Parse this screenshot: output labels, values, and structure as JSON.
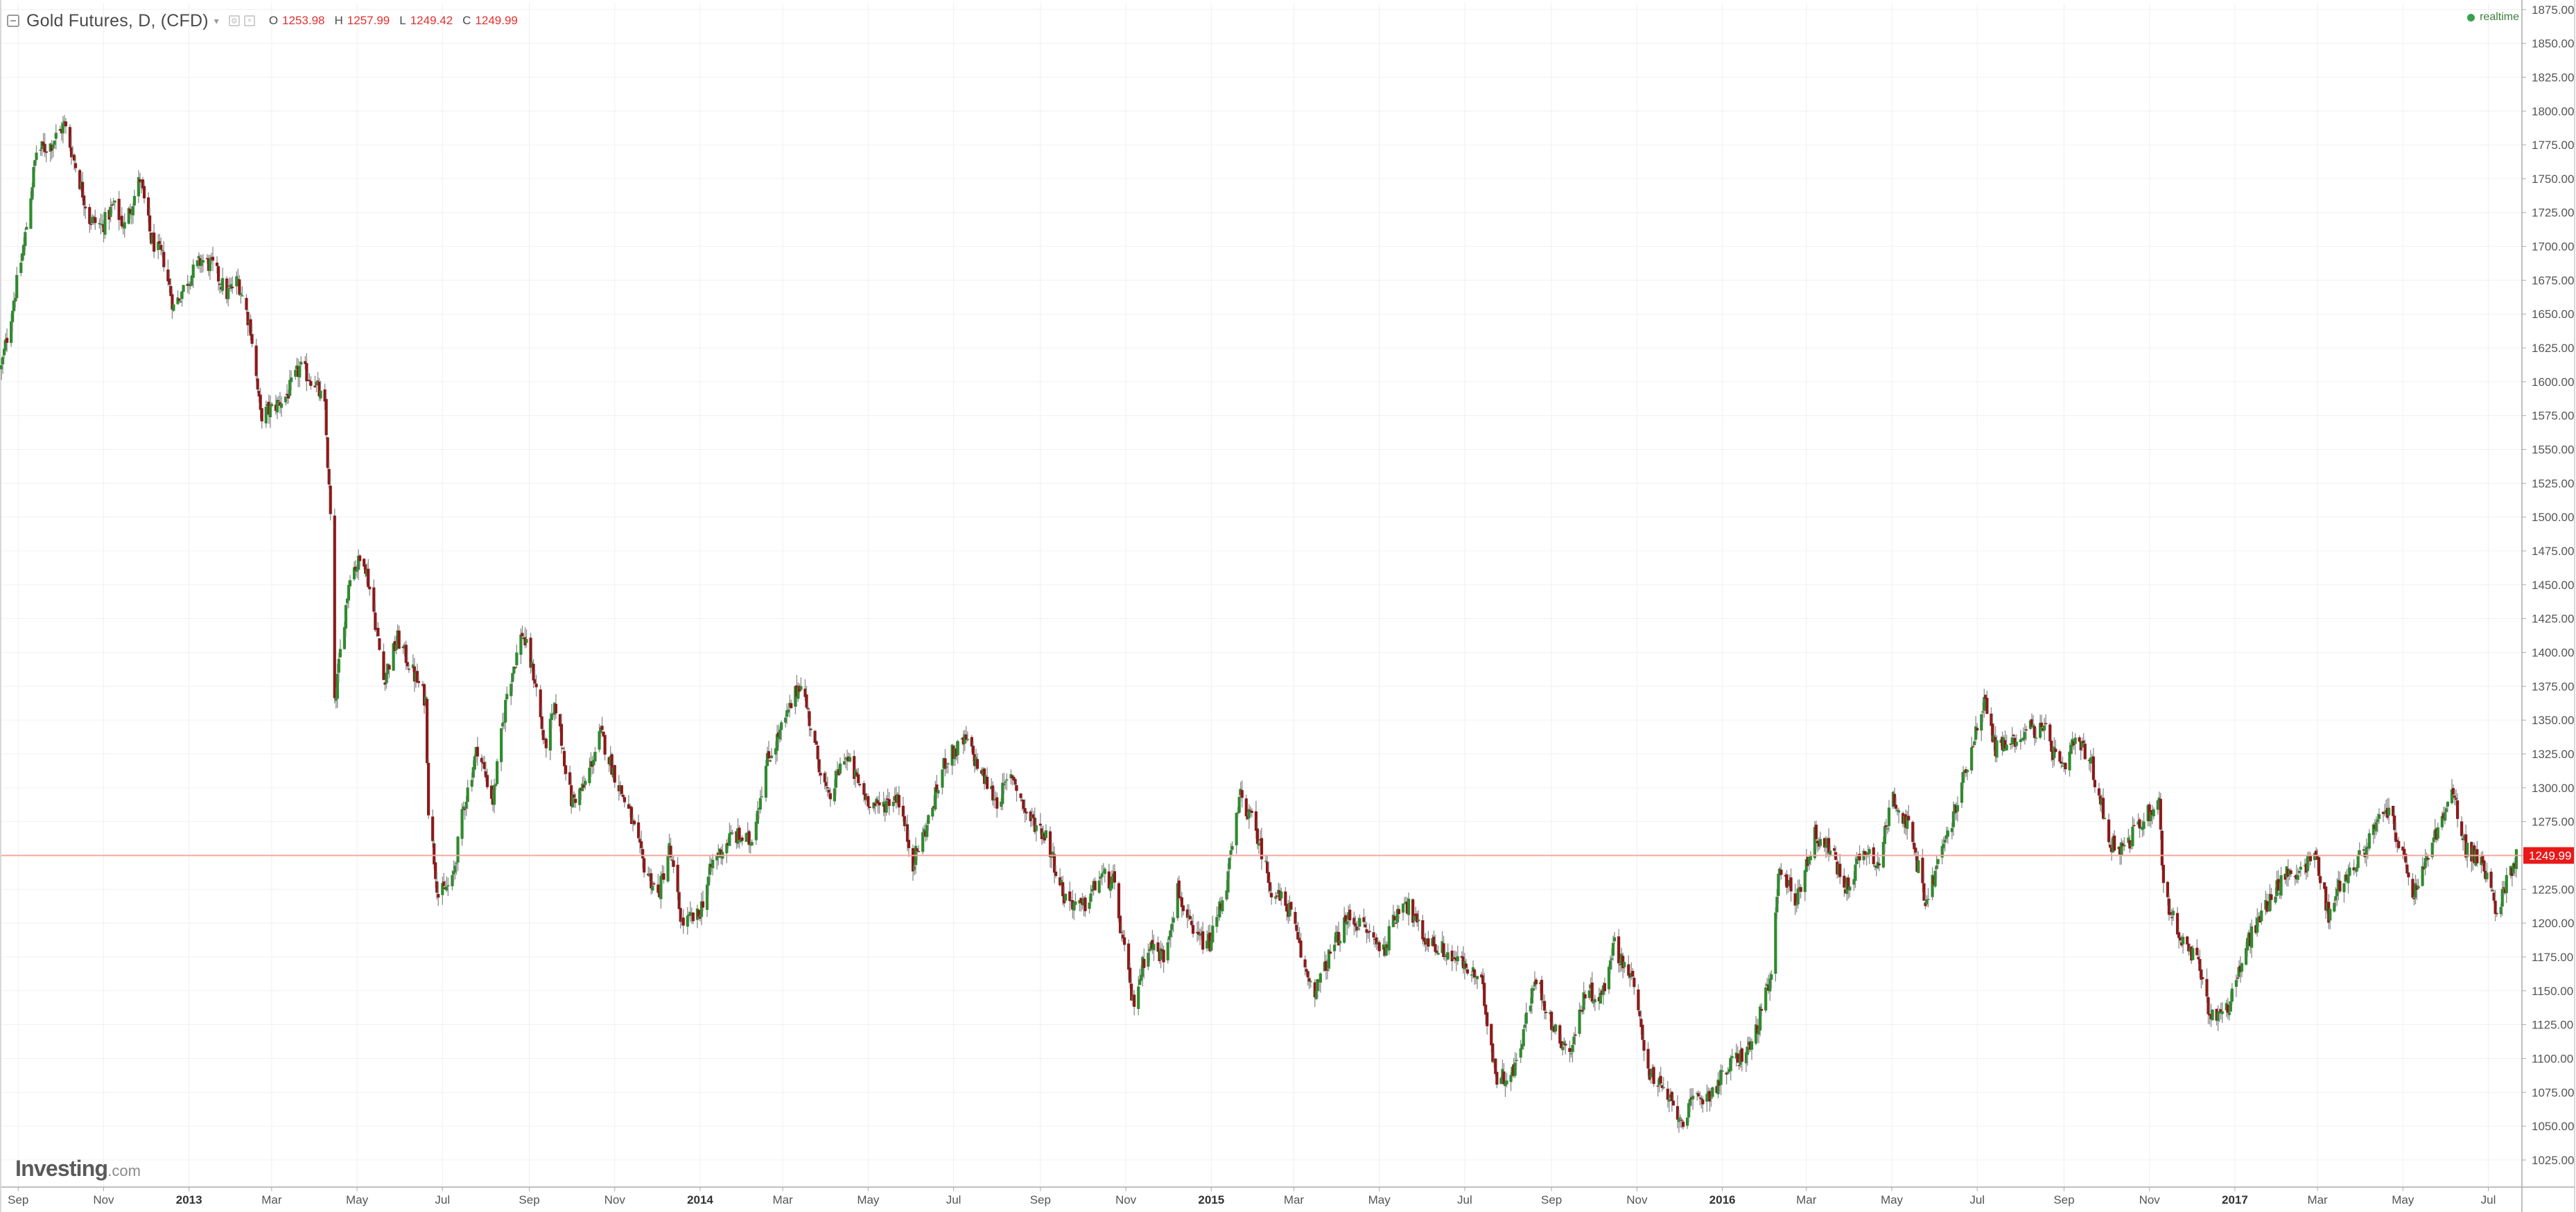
{
  "header": {
    "symbol": "Gold Futures, D, (CFD)",
    "caret": "▾",
    "open_label": "O",
    "open_value": "1253.98",
    "high_label": "H",
    "high_value": "1257.99",
    "low_label": "L",
    "low_value": "1249.42",
    "close_label": "C",
    "close_value": "1249.99"
  },
  "status": {
    "realtime_label": "realtime"
  },
  "branding": {
    "logo_main": "Investing",
    "logo_suffix": ".com"
  },
  "colors": {
    "up": "#2e8b2e",
    "down": "#8b1a1a",
    "wick": "#8a8a8a",
    "grid": "#f0f0f0",
    "axis": "#aaaaaa",
    "last_price_line": "#f2a89e",
    "last_price_tag": "#e8191a"
  },
  "chart_data": {
    "type": "candlestick",
    "title": "Gold Futures, D, (CFD)",
    "xlabel": "",
    "ylabel": "",
    "ylim": [
      1005,
      1880
    ],
    "x_range": [
      "2012-08-20",
      "2017-07-25"
    ],
    "y_ticks": [
      1025,
      1050,
      1075,
      1100,
      1125,
      1150,
      1175,
      1200,
      1225,
      1250,
      1275,
      1300,
      1325,
      1350,
      1375,
      1400,
      1425,
      1450,
      1475,
      1500,
      1525,
      1550,
      1575,
      1600,
      1625,
      1650,
      1675,
      1700,
      1725,
      1750,
      1775,
      1800,
      1825,
      1850,
      1875
    ],
    "x_ticks": [
      {
        "date": "2012-09-01",
        "label": "Sep"
      },
      {
        "date": "2012-11-01",
        "label": "Nov"
      },
      {
        "date": "2013-01-01",
        "label": "2013",
        "year": true
      },
      {
        "date": "2013-03-01",
        "label": "Mar"
      },
      {
        "date": "2013-05-01",
        "label": "May"
      },
      {
        "date": "2013-07-01",
        "label": "Jul"
      },
      {
        "date": "2013-09-01",
        "label": "Sep"
      },
      {
        "date": "2013-11-01",
        "label": "Nov"
      },
      {
        "date": "2014-01-01",
        "label": "2014",
        "year": true
      },
      {
        "date": "2014-03-01",
        "label": "Mar"
      },
      {
        "date": "2014-05-01",
        "label": "May"
      },
      {
        "date": "2014-07-01",
        "label": "Jul"
      },
      {
        "date": "2014-09-01",
        "label": "Sep"
      },
      {
        "date": "2014-11-01",
        "label": "Nov"
      },
      {
        "date": "2015-01-01",
        "label": "2015",
        "year": true
      },
      {
        "date": "2015-03-01",
        "label": "Mar"
      },
      {
        "date": "2015-05-01",
        "label": "May"
      },
      {
        "date": "2015-07-01",
        "label": "Jul"
      },
      {
        "date": "2015-09-01",
        "label": "Sep"
      },
      {
        "date": "2015-11-01",
        "label": "Nov"
      },
      {
        "date": "2016-01-01",
        "label": "2016",
        "year": true
      },
      {
        "date": "2016-03-01",
        "label": "Mar"
      },
      {
        "date": "2016-05-01",
        "label": "May"
      },
      {
        "date": "2016-07-01",
        "label": "Jul"
      },
      {
        "date": "2016-09-01",
        "label": "Sep"
      },
      {
        "date": "2016-11-01",
        "label": "Nov"
      },
      {
        "date": "2017-01-01",
        "label": "2017",
        "year": true
      },
      {
        "date": "2017-03-01",
        "label": "Mar"
      },
      {
        "date": "2017-05-01",
        "label": "May"
      },
      {
        "date": "2017-07-01",
        "label": "Jul"
      }
    ],
    "last_price": 1249.99,
    "last_price_label": "1249.99",
    "grid": true,
    "price_path": [
      [
        "2012-08-20",
        1610
      ],
      [
        "2012-08-27",
        1650
      ],
      [
        "2012-09-05",
        1700
      ],
      [
        "2012-09-14",
        1770
      ],
      [
        "2012-09-24",
        1775
      ],
      [
        "2012-10-04",
        1790
      ],
      [
        "2012-10-12",
        1760
      ],
      [
        "2012-10-22",
        1720
      ],
      [
        "2012-10-31",
        1715
      ],
      [
        "2012-11-08",
        1730
      ],
      [
        "2012-11-16",
        1715
      ],
      [
        "2012-11-27",
        1750
      ],
      [
        "2012-12-05",
        1705
      ],
      [
        "2012-12-14",
        1690
      ],
      [
        "2012-12-21",
        1655
      ],
      [
        "2012-12-31",
        1675
      ],
      [
        "2013-01-10",
        1690
      ],
      [
        "2013-01-18",
        1685
      ],
      [
        "2013-01-28",
        1665
      ],
      [
        "2013-02-05",
        1675
      ],
      [
        "2013-02-14",
        1640
      ],
      [
        "2013-02-21",
        1575
      ],
      [
        "2013-03-01",
        1580
      ],
      [
        "2013-03-12",
        1590
      ],
      [
        "2013-03-21",
        1610
      ],
      [
        "2013-04-01",
        1600
      ],
      [
        "2013-04-08",
        1580
      ],
      [
        "2013-04-12",
        1500
      ],
      [
        "2013-04-15",
        1360
      ],
      [
        "2013-04-19",
        1400
      ],
      [
        "2013-04-26",
        1460
      ],
      [
        "2013-05-06",
        1470
      ],
      [
        "2013-05-13",
        1430
      ],
      [
        "2013-05-20",
        1380
      ],
      [
        "2013-05-30",
        1410
      ],
      [
        "2013-06-10",
        1385
      ],
      [
        "2013-06-19",
        1365
      ],
      [
        "2013-06-21",
        1285
      ],
      [
        "2013-06-28",
        1220
      ],
      [
        "2013-07-08",
        1230
      ],
      [
        "2013-07-16",
        1285
      ],
      [
        "2013-07-26",
        1330
      ],
      [
        "2013-08-06",
        1290
      ],
      [
        "2013-08-16",
        1370
      ],
      [
        "2013-08-27",
        1415
      ],
      [
        "2013-09-05",
        1380
      ],
      [
        "2013-09-12",
        1330
      ],
      [
        "2013-09-20",
        1360
      ],
      [
        "2013-10-01",
        1290
      ],
      [
        "2013-10-10",
        1300
      ],
      [
        "2013-10-22",
        1340
      ],
      [
        "2013-11-01",
        1310
      ],
      [
        "2013-11-12",
        1280
      ],
      [
        "2013-11-21",
        1245
      ],
      [
        "2013-12-02",
        1220
      ],
      [
        "2013-12-10",
        1255
      ],
      [
        "2013-12-19",
        1200
      ],
      [
        "2013-12-31",
        1205
      ],
      [
        "2014-01-10",
        1245
      ],
      [
        "2014-01-24",
        1265
      ],
      [
        "2014-02-06",
        1260
      ],
      [
        "2014-02-18",
        1320
      ],
      [
        "2014-03-03",
        1350
      ],
      [
        "2014-03-14",
        1380
      ],
      [
        "2014-03-24",
        1330
      ],
      [
        "2014-04-03",
        1290
      ],
      [
        "2014-04-14",
        1325
      ],
      [
        "2014-04-28",
        1295
      ],
      [
        "2014-05-08",
        1285
      ],
      [
        "2014-05-22",
        1295
      ],
      [
        "2014-06-02",
        1245
      ],
      [
        "2014-06-13",
        1275
      ],
      [
        "2014-06-25",
        1320
      ],
      [
        "2014-07-10",
        1335
      ],
      [
        "2014-07-21",
        1310
      ],
      [
        "2014-08-01",
        1290
      ],
      [
        "2014-08-12",
        1310
      ],
      [
        "2014-08-22",
        1280
      ],
      [
        "2014-09-05",
        1265
      ],
      [
        "2014-09-18",
        1220
      ],
      [
        "2014-10-01",
        1210
      ],
      [
        "2014-10-14",
        1235
      ],
      [
        "2014-10-23",
        1230
      ],
      [
        "2014-11-06",
        1140
      ],
      [
        "2014-11-17",
        1185
      ],
      [
        "2014-11-28",
        1175
      ],
      [
        "2014-12-08",
        1225
      ],
      [
        "2014-12-19",
        1190
      ],
      [
        "2014-12-31",
        1185
      ],
      [
        "2015-01-12",
        1230
      ],
      [
        "2015-01-22",
        1295
      ],
      [
        "2015-02-03",
        1265
      ],
      [
        "2015-02-13",
        1225
      ],
      [
        "2015-02-26",
        1210
      ],
      [
        "2015-03-09",
        1165
      ],
      [
        "2015-03-17",
        1150
      ],
      [
        "2015-03-30",
        1185
      ],
      [
        "2015-04-10",
        1205
      ],
      [
        "2015-04-21",
        1195
      ],
      [
        "2015-05-04",
        1180
      ],
      [
        "2015-05-18",
        1220
      ],
      [
        "2015-06-01",
        1190
      ],
      [
        "2015-06-15",
        1180
      ],
      [
        "2015-06-29",
        1170
      ],
      [
        "2015-07-13",
        1155
      ],
      [
        "2015-07-24",
        1085
      ],
      [
        "2015-08-05",
        1090
      ],
      [
        "2015-08-21",
        1160
      ],
      [
        "2015-09-03",
        1120
      ],
      [
        "2015-09-15",
        1105
      ],
      [
        "2015-09-25",
        1150
      ],
      [
        "2015-10-07",
        1145
      ],
      [
        "2015-10-15",
        1185
      ],
      [
        "2015-10-28",
        1160
      ],
      [
        "2015-11-10",
        1090
      ],
      [
        "2015-11-20",
        1075
      ],
      [
        "2015-12-03",
        1055
      ],
      [
        "2015-12-14",
        1070
      ],
      [
        "2015-12-24",
        1075
      ],
      [
        "2016-01-07",
        1095
      ],
      [
        "2016-01-22",
        1110
      ],
      [
        "2016-02-05",
        1160
      ],
      [
        "2016-02-11",
        1245
      ],
      [
        "2016-02-22",
        1215
      ],
      [
        "2016-03-07",
        1265
      ],
      [
        "2016-03-18",
        1255
      ],
      [
        "2016-03-29",
        1225
      ],
      [
        "2016-04-11",
        1255
      ],
      [
        "2016-04-22",
        1245
      ],
      [
        "2016-05-02",
        1295
      ],
      [
        "2016-05-13",
        1270
      ],
      [
        "2016-05-26",
        1215
      ],
      [
        "2016-06-03",
        1245
      ],
      [
        "2016-06-16",
        1285
      ],
      [
        "2016-06-24",
        1320
      ],
      [
        "2016-07-06",
        1365
      ],
      [
        "2016-07-14",
        1330
      ],
      [
        "2016-07-27",
        1335
      ],
      [
        "2016-08-08",
        1345
      ],
      [
        "2016-08-19",
        1340
      ],
      [
        "2016-08-31",
        1310
      ],
      [
        "2016-09-09",
        1335
      ],
      [
        "2016-09-20",
        1320
      ],
      [
        "2016-10-04",
        1260
      ],
      [
        "2016-10-14",
        1255
      ],
      [
        "2016-10-26",
        1275
      ],
      [
        "2016-11-08",
        1290
      ],
      [
        "2016-11-11",
        1225
      ],
      [
        "2016-11-24",
        1185
      ],
      [
        "2016-12-06",
        1170
      ],
      [
        "2016-12-15",
        1130
      ],
      [
        "2016-12-28",
        1140
      ],
      [
        "2017-01-10",
        1185
      ],
      [
        "2017-01-24",
        1215
      ],
      [
        "2017-02-06",
        1235
      ],
      [
        "2017-02-17",
        1240
      ],
      [
        "2017-02-28",
        1250
      ],
      [
        "2017-03-09",
        1205
      ],
      [
        "2017-03-17",
        1230
      ],
      [
        "2017-03-30",
        1245
      ],
      [
        "2017-04-11",
        1270
      ],
      [
        "2017-04-21",
        1285
      ],
      [
        "2017-05-03",
        1240
      ],
      [
        "2017-05-09",
        1220
      ],
      [
        "2017-05-22",
        1260
      ],
      [
        "2017-06-06",
        1295
      ],
      [
        "2017-06-15",
        1255
      ],
      [
        "2017-06-26",
        1245
      ],
      [
        "2017-07-07",
        1210
      ],
      [
        "2017-07-14",
        1230
      ],
      [
        "2017-07-21",
        1250
      ]
    ]
  }
}
